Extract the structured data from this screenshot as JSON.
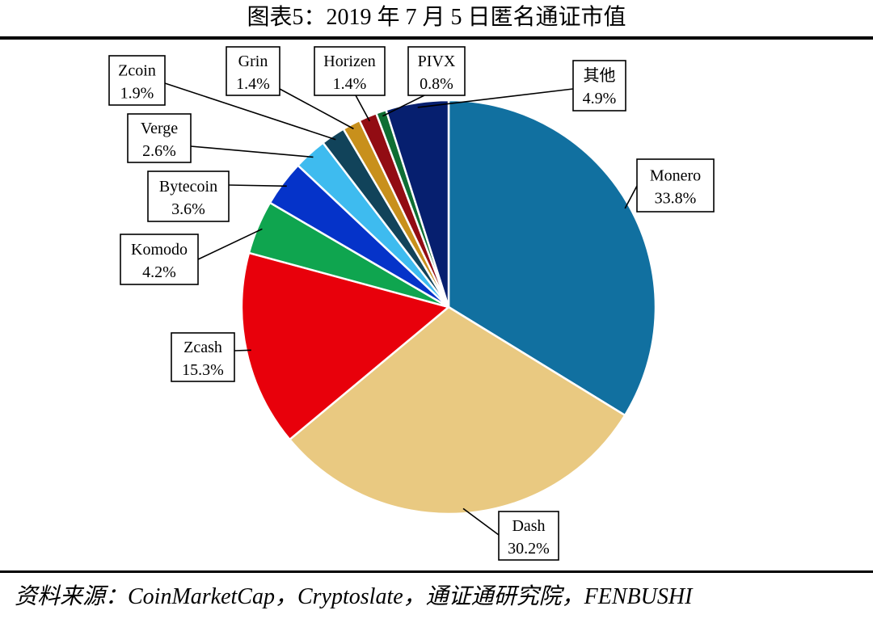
{
  "title": "图表5：2019 年 7 月 5 日匿名通证市值",
  "source": "资料来源：CoinMarketCap，Cryptoslate，通证通研究院，FENBUSHI",
  "chart_data": {
    "type": "pie",
    "title": "图表5：2019 年 7 月 5 日匿名通证市值",
    "slices": [
      {
        "label": "Monero",
        "value": 33.8,
        "text": "33.8%",
        "color": "#1170a0"
      },
      {
        "label": "Dash",
        "value": 30.2,
        "text": "30.2%",
        "color": "#e9c981"
      },
      {
        "label": "Zcash",
        "value": 15.3,
        "text": "15.3%",
        "color": "#e8000b"
      },
      {
        "label": "Komodo",
        "value": 4.2,
        "text": "4.2%",
        "color": "#0fa54f"
      },
      {
        "label": "Bytecoin",
        "value": 3.6,
        "text": "3.6%",
        "color": "#0533c9"
      },
      {
        "label": "Verge",
        "value": 2.6,
        "text": "2.6%",
        "color": "#3ebbef"
      },
      {
        "label": "Zcoin",
        "value": 1.9,
        "text": "1.9%",
        "color": "#11435a"
      },
      {
        "label": "Grin",
        "value": 1.4,
        "text": "1.4%",
        "color": "#c8901c"
      },
      {
        "label": "Horizen",
        "value": 1.4,
        "text": "1.4%",
        "color": "#920c13"
      },
      {
        "label": "PIVX",
        "value": 0.8,
        "text": "0.8%",
        "color": "#0e6e33"
      },
      {
        "label": "其他",
        "value": 4.9,
        "text": "4.9%",
        "color": "#061f6f"
      }
    ],
    "start": "12 o'clock",
    "direction": "clockwise"
  }
}
